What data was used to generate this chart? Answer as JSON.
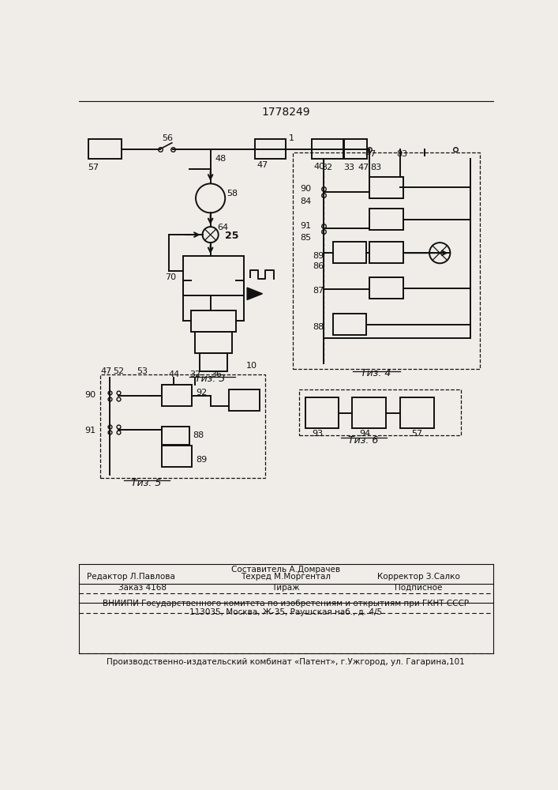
{
  "title": "1778249",
  "background_color": "#f0ede8",
  "footer_line1": "Редактор Л.Павлова",
  "footer_line2": "Составитель А.Домрачев",
  "footer_line3": "Техред М.Моргентал",
  "footer_line4": "Корректор З.Салко",
  "footer_zakaz": "Заказ 4168",
  "footer_tirazh": "Тираж",
  "footer_podpisnoe": "Подписное",
  "footer_vnipi": "ВНИИПИ Государственного комитета по изобретениям и открытиям при ГКНТ СССР",
  "footer_address": "113035, Москва, Ж-35, Раушская наб., д. 4/5",
  "footer_patent": "Производственно-издательский комбинат «Патент», г.Ужгород, ул. Гагарина,101"
}
